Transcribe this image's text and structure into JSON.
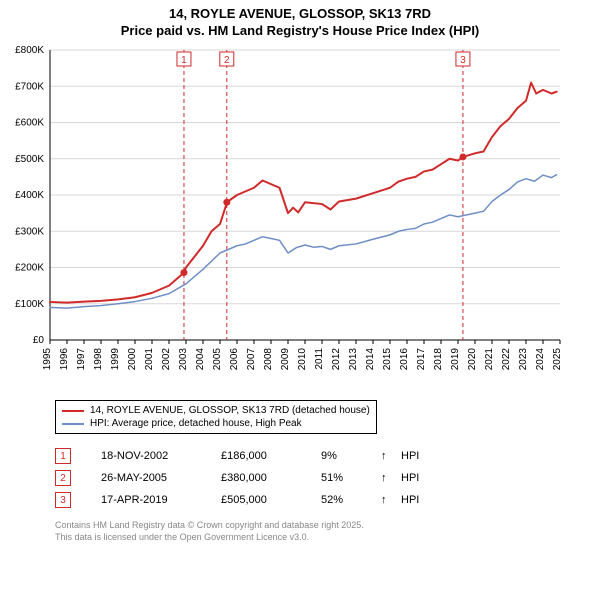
{
  "title_line1": "14, ROYLE AVENUE, GLOSSOP, SK13 7RD",
  "title_line2": "Price paid vs. HM Land Registry's House Price Index (HPI)",
  "chart": {
    "type": "line",
    "xlim": [
      1995,
      2025
    ],
    "ylim": [
      0,
      800
    ],
    "ytick_step": 100,
    "yunit_prefix": "£",
    "yunit_suffix": "K",
    "background_color": "#ffffff",
    "grid_color": "#d8d8d8",
    "axis_color": "#000000",
    "tick_font_size": 10,
    "xticks": [
      1995,
      1996,
      1997,
      1998,
      1999,
      2000,
      2001,
      2002,
      2003,
      2004,
      2005,
      2006,
      2007,
      2008,
      2009,
      2010,
      2011,
      2012,
      2013,
      2014,
      2015,
      2016,
      2017,
      2018,
      2019,
      2020,
      2021,
      2022,
      2023,
      2024,
      2025
    ],
    "yticks": [
      0,
      100,
      200,
      300,
      400,
      500,
      600,
      700,
      800
    ],
    "sale_marker_line_color": "#d02a2a",
    "sale_marker_line_dash": "4 3",
    "series": [
      {
        "name": "price_paid",
        "label": "14, ROYLE AVENUE, GLOSSOP, SK13 7RD (detached house)",
        "color": "#d02a2a",
        "line_width": 2,
        "data": [
          [
            1995,
            105
          ],
          [
            1996,
            103
          ],
          [
            1997,
            106
          ],
          [
            1998,
            108
          ],
          [
            1999,
            112
          ],
          [
            2000,
            118
          ],
          [
            2001,
            130
          ],
          [
            2002,
            150
          ],
          [
            2002.88,
            186
          ],
          [
            2003,
            200
          ],
          [
            2004,
            260
          ],
          [
            2004.5,
            300
          ],
          [
            2005,
            320
          ],
          [
            2005.38,
            375
          ],
          [
            2005.4,
            380
          ],
          [
            2006,
            400
          ],
          [
            2006.5,
            410
          ],
          [
            2007,
            420
          ],
          [
            2007.5,
            440
          ],
          [
            2008,
            430
          ],
          [
            2008.5,
            420
          ],
          [
            2009,
            350
          ],
          [
            2009.3,
            365
          ],
          [
            2009.6,
            352
          ],
          [
            2010,
            380
          ],
          [
            2011,
            375
          ],
          [
            2011.5,
            360
          ],
          [
            2012,
            382
          ],
          [
            2013,
            390
          ],
          [
            2014,
            405
          ],
          [
            2015,
            420
          ],
          [
            2015.5,
            437
          ],
          [
            2016,
            445
          ],
          [
            2016.5,
            450
          ],
          [
            2017,
            465
          ],
          [
            2017.5,
            470
          ],
          [
            2018,
            485
          ],
          [
            2018.5,
            500
          ],
          [
            2019,
            495
          ],
          [
            2019.29,
            505
          ],
          [
            2020,
            515
          ],
          [
            2020.5,
            520
          ],
          [
            2021,
            560
          ],
          [
            2021.5,
            590
          ],
          [
            2022,
            610
          ],
          [
            2022.5,
            640
          ],
          [
            2023,
            660
          ],
          [
            2023.3,
            710
          ],
          [
            2023.6,
            680
          ],
          [
            2024,
            690
          ],
          [
            2024.5,
            680
          ],
          [
            2024.8,
            685
          ]
        ]
      },
      {
        "name": "hpi",
        "label": "HPI: Average price, detached house, High Peak",
        "color": "#6e8fc6",
        "line_width": 1.5,
        "data": [
          [
            1995,
            90
          ],
          [
            1996,
            88
          ],
          [
            1997,
            92
          ],
          [
            1998,
            95
          ],
          [
            1999,
            100
          ],
          [
            2000,
            106
          ],
          [
            2001,
            115
          ],
          [
            2002,
            128
          ],
          [
            2003,
            155
          ],
          [
            2004,
            195
          ],
          [
            2005,
            240
          ],
          [
            2006,
            260
          ],
          [
            2006.5,
            265
          ],
          [
            2007,
            275
          ],
          [
            2007.5,
            285
          ],
          [
            2008,
            280
          ],
          [
            2008.5,
            275
          ],
          [
            2009,
            240
          ],
          [
            2009.5,
            255
          ],
          [
            2010,
            262
          ],
          [
            2010.5,
            256
          ],
          [
            2011,
            258
          ],
          [
            2011.5,
            250
          ],
          [
            2012,
            260
          ],
          [
            2013,
            265
          ],
          [
            2014,
            278
          ],
          [
            2015,
            290
          ],
          [
            2015.5,
            300
          ],
          [
            2016,
            305
          ],
          [
            2016.5,
            308
          ],
          [
            2017,
            320
          ],
          [
            2017.5,
            325
          ],
          [
            2018,
            335
          ],
          [
            2018.5,
            345
          ],
          [
            2019,
            340
          ],
          [
            2020,
            350
          ],
          [
            2020.5,
            355
          ],
          [
            2021,
            382
          ],
          [
            2021.5,
            400
          ],
          [
            2022,
            415
          ],
          [
            2022.5,
            436
          ],
          [
            2023,
            445
          ],
          [
            2023.5,
            438
          ],
          [
            2024,
            455
          ],
          [
            2024.5,
            448
          ],
          [
            2024.8,
            456
          ]
        ]
      }
    ],
    "sale_markers": [
      {
        "n": "1",
        "x": 2002.88
      },
      {
        "n": "2",
        "x": 2005.4
      },
      {
        "n": "3",
        "x": 2019.29
      }
    ]
  },
  "legend": {
    "items": [
      {
        "color": "#d02a2a",
        "label": "14, ROYLE AVENUE, GLOSSOP, SK13 7RD (detached house)"
      },
      {
        "color": "#6e8fc6",
        "label": "HPI: Average price, detached house, High Peak"
      }
    ]
  },
  "sales": [
    {
      "n": "1",
      "date": "18-NOV-2002",
      "price": "£186,000",
      "pct": "9%",
      "arrow": "↑",
      "hpi_label": "HPI",
      "box_color": "#d02a2a"
    },
    {
      "n": "2",
      "date": "26-MAY-2005",
      "price": "£380,000",
      "pct": "51%",
      "arrow": "↑",
      "hpi_label": "HPI",
      "box_color": "#d02a2a"
    },
    {
      "n": "3",
      "date": "17-APR-2019",
      "price": "£505,000",
      "pct": "52%",
      "arrow": "↑",
      "hpi_label": "HPI",
      "box_color": "#d02a2a"
    }
  ],
  "footer_line1": "Contains HM Land Registry data © Crown copyright and database right 2025.",
  "footer_line2": "This data is licensed under the Open Government Licence v3.0."
}
